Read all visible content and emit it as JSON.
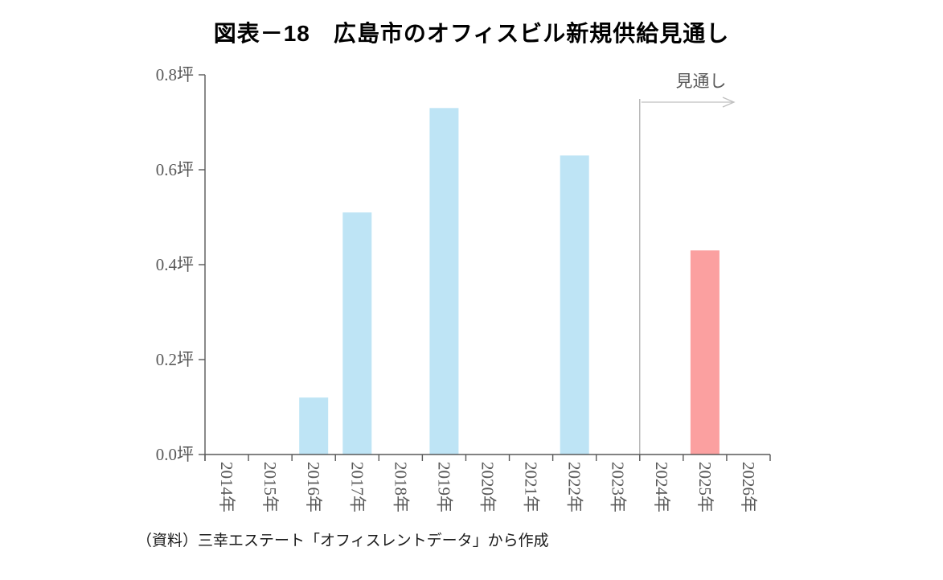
{
  "page": {
    "title": "図表－18　広島市のオフィスビル新規供給見通し",
    "source_note": "（資料）三幸エステート「オフィスレントデータ」から作成"
  },
  "chart_data": {
    "type": "bar",
    "title": "図表－18　広島市のオフィスビル新規供給見通し",
    "unit": "坪",
    "categories": [
      "2014年",
      "2015年",
      "2016年",
      "2017年",
      "2018年",
      "2019年",
      "2020年",
      "2021年",
      "2022年",
      "2023年",
      "2024年",
      "2025年",
      "2026年"
    ],
    "values": [
      0,
      0,
      0.12,
      0.51,
      0,
      0.73,
      0,
      0,
      0.63,
      0,
      0,
      0.43,
      0
    ],
    "ylim": [
      0,
      0.8
    ],
    "ytick_step": 0.2,
    "ytick_labels": [
      "0.0坪",
      "0.2坪",
      "0.4坪",
      "0.6坪",
      "0.8坪"
    ],
    "xlabel": "",
    "ylabel": "",
    "grid": false,
    "legend": "none",
    "forecast": {
      "label": "見通し",
      "boundary_between": [
        "2023年",
        "2024年"
      ],
      "forecast_start_index": 10,
      "forecast_years": [
        "2024年",
        "2025年",
        "2026年"
      ]
    },
    "colors": {
      "actual_bar": "#BEE4F5",
      "forecast_bar": "#FBA0A0",
      "axis": "#595959",
      "label_text": "#595959",
      "forecast_line": "#AFAFAF",
      "arrow": "#BFBFBF",
      "title_text": "#000000",
      "source_text": "#1A1A1A"
    }
  }
}
